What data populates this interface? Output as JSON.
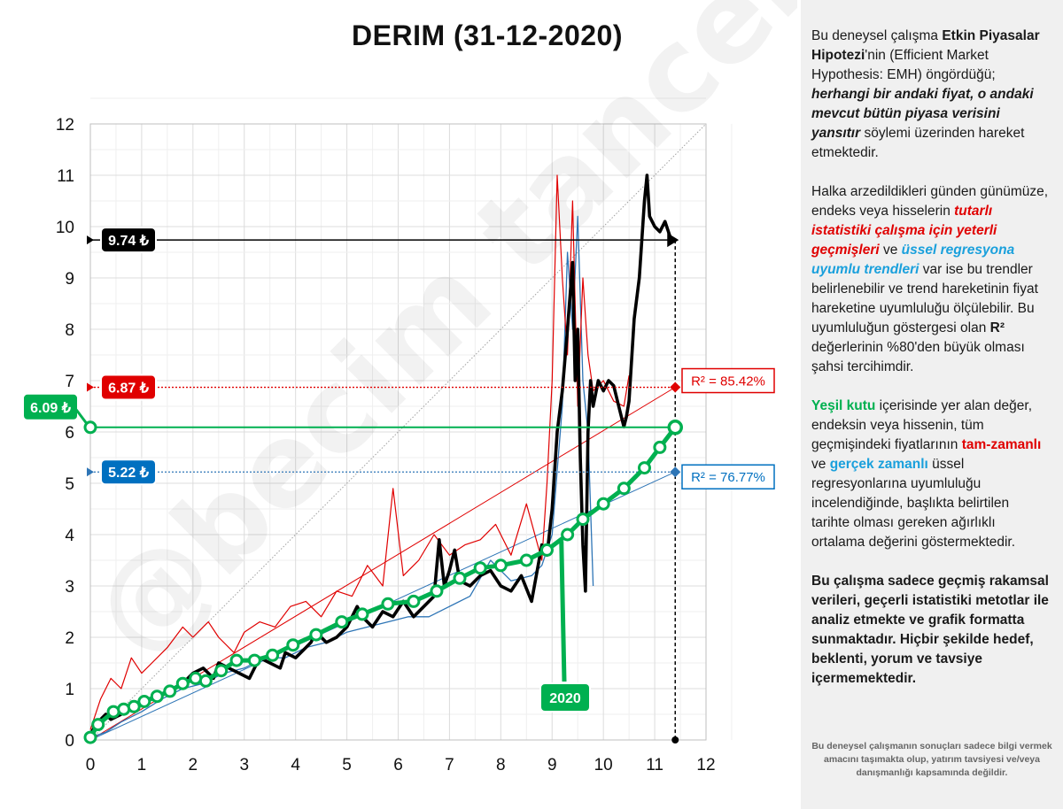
{
  "chart_data": {
    "type": "line",
    "title": "DERIM (31-12-2020)",
    "xlabel": "",
    "ylabel": "",
    "xlim": [
      0,
      12
    ],
    "ylim": [
      0,
      12
    ],
    "x_ticks": [
      "0",
      "1",
      "2",
      "3",
      "4",
      "5",
      "6",
      "7",
      "8",
      "9",
      "10",
      "11",
      "12"
    ],
    "y_ticks": [
      "0",
      "1",
      "2",
      "3",
      "4",
      "5",
      "6",
      "7",
      "8",
      "9",
      "10",
      "11",
      "12"
    ],
    "grid": true,
    "series": [
      {
        "name": "",
        "color": "#000000",
        "x": [
          0,
          0.1,
          0.2,
          0.3,
          0.4,
          0.6,
          0.8,
          1.0,
          1.2,
          1.4,
          1.6,
          1.8,
          2.0,
          2.2,
          2.4,
          2.5,
          2.7,
          2.9,
          3.1,
          3.3,
          3.5,
          3.7,
          3.8,
          4.0,
          4.2,
          4.3,
          4.4,
          4.6,
          4.8,
          5.0,
          5.2,
          5.3,
          5.5,
          5.7,
          5.9,
          6.1,
          6.3,
          6.5,
          6.7,
          6.8,
          6.9,
          7.0,
          7.1,
          7.2,
          7.4,
          7.6,
          7.8,
          8.0,
          8.2,
          8.4,
          8.6,
          8.8,
          8.9,
          9.0,
          9.1,
          9.2,
          9.3,
          9.4,
          9.45,
          9.5,
          9.55,
          9.6,
          9.65,
          9.7,
          9.75,
          9.8,
          9.9,
          10.0,
          10.1,
          10.2,
          10.3,
          10.4,
          10.45,
          10.5,
          10.6,
          10.7,
          10.8,
          10.85,
          10.9,
          11.0,
          11.1,
          11.2,
          11.3,
          11.4
        ],
        "y": [
          0.1,
          0.3,
          0.4,
          0.5,
          0.4,
          0.5,
          0.6,
          0.7,
          0.8,
          0.9,
          1.0,
          1.1,
          1.3,
          1.4,
          1.2,
          1.5,
          1.4,
          1.3,
          1.2,
          1.6,
          1.5,
          1.4,
          1.7,
          1.6,
          1.8,
          1.9,
          2.1,
          1.9,
          2.0,
          2.2,
          2.6,
          2.4,
          2.2,
          2.5,
          2.4,
          2.7,
          2.4,
          2.6,
          2.8,
          3.9,
          3.0,
          3.3,
          3.7,
          3.1,
          3.0,
          3.2,
          3.3,
          3.0,
          2.9,
          3.2,
          2.7,
          3.8,
          3.6,
          4.5,
          6.0,
          6.8,
          8.0,
          9.3,
          7.0,
          8.0,
          5.5,
          3.8,
          2.9,
          6.0,
          7.0,
          6.5,
          7.0,
          6.8,
          7.0,
          6.9,
          6.5,
          6.1,
          6.3,
          6.6,
          8.2,
          9.0,
          10.5,
          11.0,
          10.2,
          10.0,
          9.9,
          10.1,
          9.8,
          9.74
        ]
      },
      {
        "name": "",
        "color": "#e00000",
        "x": [
          0,
          0.2,
          0.4,
          0.6,
          0.8,
          1.0,
          1.2,
          1.5,
          1.8,
          2.0,
          2.3,
          2.5,
          2.8,
          3.0,
          3.3,
          3.6,
          3.9,
          4.2,
          4.5,
          4.8,
          5.1,
          5.4,
          5.7,
          5.9,
          6.1,
          6.4,
          6.7,
          7.0,
          7.3,
          7.6,
          7.9,
          8.2,
          8.5,
          8.8,
          8.9,
          9.0,
          9.1,
          9.2,
          9.3,
          9.4,
          9.5,
          9.6,
          9.7,
          9.8,
          10.0,
          10.2,
          10.4,
          10.5
        ],
        "y": [
          0.2,
          0.8,
          1.2,
          1.0,
          1.6,
          1.3,
          1.5,
          1.8,
          2.2,
          2.0,
          2.3,
          2.0,
          1.7,
          2.1,
          2.3,
          2.2,
          2.6,
          2.7,
          2.4,
          2.9,
          2.8,
          3.4,
          3.0,
          4.9,
          3.2,
          3.5,
          4.0,
          3.6,
          3.8,
          3.9,
          4.2,
          3.6,
          4.6,
          3.5,
          5.0,
          7.0,
          11.0,
          9.0,
          7.5,
          10.5,
          6.5,
          9.0,
          7.5,
          6.8,
          7.0,
          6.6,
          6.5,
          7.1
        ]
      },
      {
        "name": "",
        "color": "#2e75b6",
        "x": [
          0,
          0.3,
          0.6,
          1.0,
          1.4,
          1.8,
          2.2,
          2.6,
          3.0,
          3.4,
          3.8,
          4.2,
          4.6,
          5.0,
          5.4,
          5.8,
          6.2,
          6.6,
          7.0,
          7.4,
          7.8,
          8.2,
          8.6,
          8.8,
          9.0,
          9.2,
          9.3,
          9.4,
          9.5,
          9.6,
          9.7,
          9.8
        ],
        "y": [
          0.05,
          0.15,
          0.35,
          0.55,
          0.8,
          1.0,
          1.1,
          1.3,
          1.4,
          1.6,
          1.6,
          1.8,
          1.9,
          2.1,
          2.2,
          2.3,
          2.4,
          2.4,
          2.6,
          2.8,
          3.5,
          3.1,
          3.2,
          3.4,
          4.0,
          6.5,
          9.5,
          8.0,
          10.2,
          7.0,
          6.0,
          3.0
        ]
      },
      {
        "name": "",
        "color": "#00b050",
        "x": [
          0,
          0.15,
          0.45,
          0.65,
          0.85,
          1.05,
          1.3,
          1.55,
          1.8,
          2.05,
          2.25,
          2.55,
          2.85,
          3.2,
          3.55,
          3.95,
          4.4,
          4.9,
          5.3,
          5.8,
          6.3,
          6.75,
          7.2,
          7.6,
          8.0,
          8.5,
          8.9,
          9.3,
          9.6,
          10.0,
          10.4,
          10.8,
          11.1,
          11.4
        ],
        "y": [
          0.05,
          0.3,
          0.55,
          0.6,
          0.65,
          0.75,
          0.85,
          0.95,
          1.1,
          1.2,
          1.15,
          1.35,
          1.55,
          1.55,
          1.65,
          1.85,
          2.05,
          2.3,
          2.45,
          2.65,
          2.7,
          2.9,
          3.15,
          3.35,
          3.4,
          3.5,
          3.7,
          4.0,
          4.3,
          4.6,
          4.9,
          5.3,
          5.7,
          6.09
        ]
      },
      {
        "name": "",
        "color": "#e00000",
        "style": "trend",
        "x": [
          0,
          11.4
        ],
        "y": [
          0,
          6.87
        ]
      },
      {
        "name": "",
        "color": "#2e75b6",
        "style": "trend",
        "x": [
          0,
          11.4
        ],
        "y": [
          0,
          5.22
        ]
      }
    ],
    "reference_lines": [
      {
        "label": "9.74 ₺",
        "value": 9.74,
        "color": "#000000"
      },
      {
        "label": "6.87 ₺",
        "value": 6.87,
        "color": "#e00000"
      },
      {
        "label": "6.09 ₺",
        "value": 6.09,
        "color": "#00b050"
      },
      {
        "label": "5.22 ₺",
        "value": 5.22,
        "color": "#2e75b6"
      }
    ],
    "annotations": {
      "r2_red": "R² = 85.42%",
      "r2_blue": "R² = 76.77%",
      "year_marker": "2020",
      "year_marker_x": 9.25,
      "year_marker_y": 3.98,
      "current_x": 11.4
    },
    "watermark": "@becim tancel"
  },
  "side_panel": {
    "p1_a": "Bu deneysel çalışma ",
    "p1_b": "Etkin Piyasalar Hipotezi",
    "p1_c": "'nin (Efficient Market Hypothesis: EMH) öngördüğü; ",
    "p1_d": "herhangi bir andaki fiyat, o andaki mevcut bütün piyasa verisini yansıtır",
    "p1_e": "  söylemi üzerinden hareket etmektedir.",
    "p2_a": "Halka arzedildikleri günden günümüze, endeks veya hisselerin ",
    "p2_b": "tutarlı istatistiki çalışma için yeterli geçmişleri",
    "p2_c": " ve ",
    "p2_d": "üssel regresyona uyumlu trendleri",
    "p2_e": " var ise bu trendler belirlenebilir  ve trend hareketinin fiyat hareketine uyumluluğu ölçülebilir.  Bu uyumluluğun göstergesi olan ",
    "p2_f": "R²",
    "p2_g": " değerlerinin %80'den büyük olması şahsi tercihimdir.",
    "p3_a": "Yeşil kutu",
    "p3_b": " içerisinde yer alan değer, endeksin veya hissenin, tüm geçmişindeki fiyatlarının ",
    "p3_c": "tam-zamanlı",
    "p3_d": " ve ",
    "p3_e": "gerçek zamanlı",
    "p3_f": " üssel regresyonlarına uyumluluğu incelendiğinde, başlıkta belirtilen tarihte olması gereken ağırlıklı ortalama değerini göstermektedir.",
    "p4": "Bu çalışma sadece geçmiş rakamsal verileri, geçerli istatistiki metotlar ile  analiz etmekte ve grafik formatta sunmaktadır. Hiçbir şekilde hedef, beklenti, yorum ve tavsiye içermemektedir.",
    "disclaimer": "Bu deneysel çalışmanın sonuçları sadece bilgi vermek amacını taşımakta olup, yatırım tavsiyesi ve/veya danışmanlığı kapsamında değildir."
  }
}
